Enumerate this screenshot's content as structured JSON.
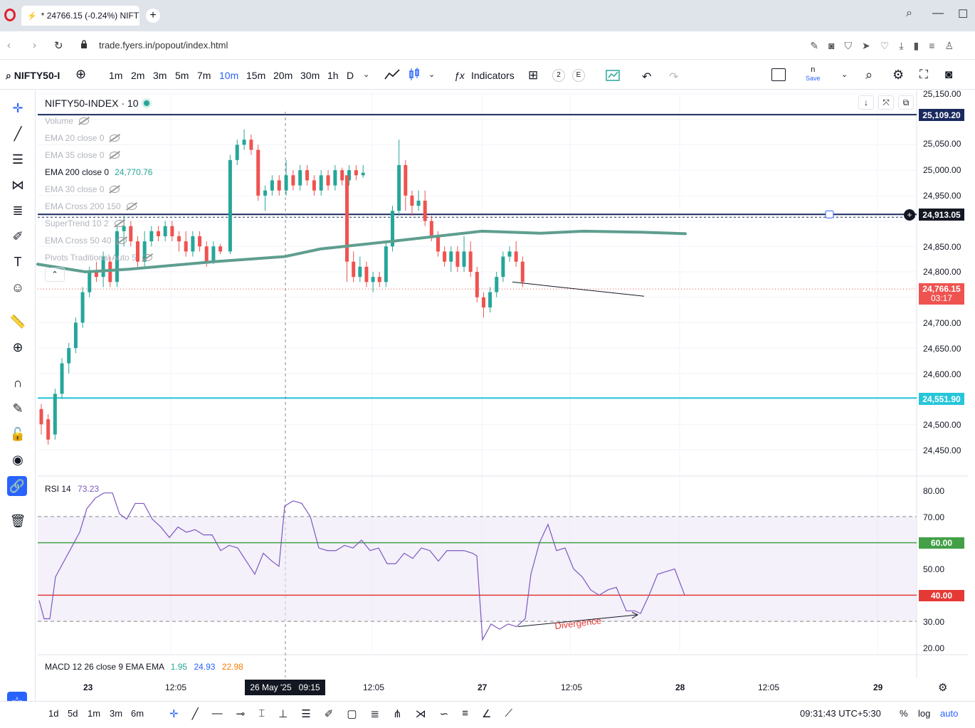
{
  "browser": {
    "tab_title": "* 24766.15 (-0.24%) NIFTY",
    "url": "trade.fyers.in/popout/index.html"
  },
  "toolbar": {
    "symbol": "NIFTY50-I",
    "intervals": [
      "1m",
      "2m",
      "3m",
      "5m",
      "7m",
      "10m",
      "15m",
      "20m",
      "30m",
      "1h",
      "D"
    ],
    "active_interval": "10m",
    "indicators_label": "Indicators",
    "badge_2": "2",
    "badge_e": "E",
    "save_top": "n",
    "save_label": "Save"
  },
  "chart": {
    "title": "NIFTY50-INDEX · 10",
    "legend": [
      {
        "text": "Volume",
        "active": false
      },
      {
        "text": "EMA 20 close 0",
        "active": false
      },
      {
        "text": "EMA 35 close 0",
        "active": false
      },
      {
        "text": "EMA 200 close 0",
        "active": true,
        "value": "24,770.76"
      },
      {
        "text": "EMA 30 close 0",
        "active": false
      },
      {
        "text": "EMA Cross 200 150",
        "active": false
      },
      {
        "text": "SuperTrend 10 2",
        "active": false
      },
      {
        "text": "EMA Cross 50 40",
        "active": false
      },
      {
        "text": "Pivots Traditional Auto 5",
        "active": false
      }
    ],
    "price_ticks": [
      "25,150.00",
      "25,050.00",
      "25,000.00",
      "24,950.00",
      "24,850.00",
      "24,800.00",
      "24,700.00",
      "24,650.00",
      "24,600.00",
      "24,500.00",
      "24,450.00"
    ],
    "price_labels": {
      "top_line": "25,109.20",
      "mid_line": "24,913.05",
      "last_price": "24,766.15",
      "countdown": "03:17",
      "cyan_line": "24,551.90"
    },
    "rsi": {
      "label": "RSI 14",
      "value": "73.23",
      "ticks": [
        "80.00",
        "70.00",
        "50.00",
        "30.00",
        "20.00"
      ],
      "green_label": "60.00",
      "red_label": "40.00",
      "annotation": "Divergence"
    },
    "macd": {
      "label": "MACD 12 26 close 9 EMA EMA",
      "v1": "1.95",
      "v2": "24.93",
      "v3": "22.98"
    },
    "time_axis": [
      "23",
      "12:05",
      "12:05",
      "27",
      "12:05",
      "28",
      "12:05",
      "29"
    ],
    "crosshair_time": "26 May '25   09:15"
  },
  "bottom": {
    "ranges": [
      "1d",
      "5d",
      "1m",
      "3m",
      "6m"
    ],
    "clock": "09:31:43 UTC+5:30",
    "pct": "%",
    "log": "log",
    "auto": "auto"
  },
  "colors": {
    "up": "#26a69a",
    "down": "#ef5350",
    "ema": "#5e9e8f",
    "rsi_line": "#7e57c2",
    "accent": "#2962ff"
  }
}
